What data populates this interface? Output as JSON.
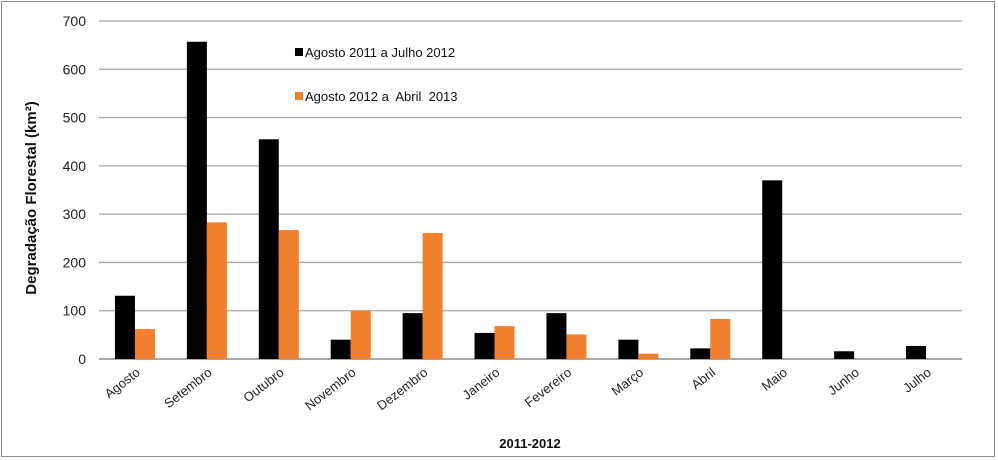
{
  "chart_data": {
    "type": "bar",
    "title": "",
    "xlabel": "2011-2012",
    "ylabel": "Degradação Florestal (km²)",
    "ylim": [
      0,
      700
    ],
    "yticks": [
      0,
      100,
      200,
      300,
      400,
      500,
      600,
      700
    ],
    "grid": true,
    "legend_position": "top-center",
    "categories": [
      "Agosto",
      "Setembro",
      "Outubro",
      "Novembro",
      "Dezembro",
      "Janeiro",
      "Fevereiro",
      "Março",
      "Abril",
      "Maio",
      "Junho",
      "Julho"
    ],
    "series": [
      {
        "name": "Agosto 2011 a Julho 2012",
        "color": "#000000",
        "values": [
          131,
          657,
          455,
          40,
          95,
          54,
          95,
          40,
          22,
          370,
          16,
          27
        ]
      },
      {
        "name": "Agosto 2012 a  Abril  2013",
        "color": "#f07f2e",
        "values": [
          62,
          283,
          267,
          100,
          261,
          68,
          51,
          11,
          83,
          null,
          null,
          null
        ]
      }
    ]
  }
}
